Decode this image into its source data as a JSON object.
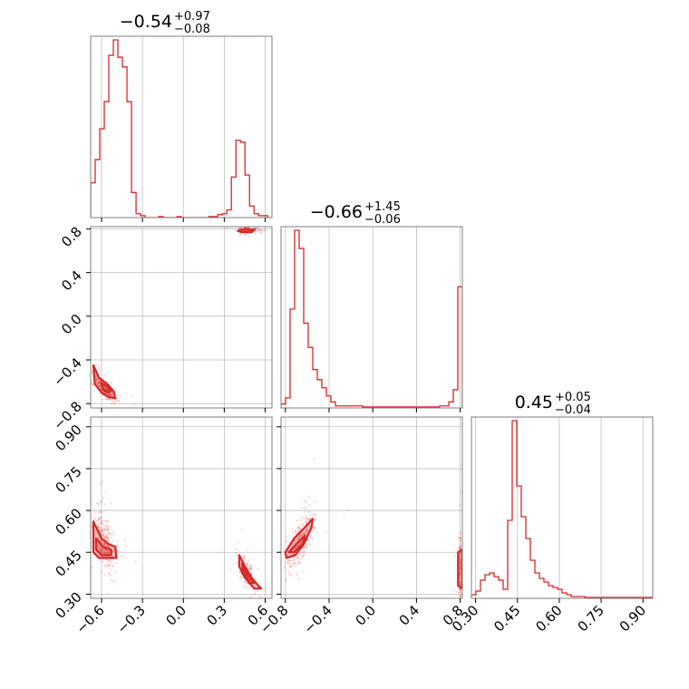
{
  "chart_data": {
    "type": "corner",
    "color": "#d62728",
    "params": [
      {
        "title_main": "−0.54",
        "title_plus": "+0.97",
        "title_minus": "−0.08",
        "range": [
          -0.68,
          0.65
        ],
        "ticks": [
          -0.6,
          -0.3,
          0.0,
          0.3,
          0.6
        ],
        "tick_labels": [
          "−0.6",
          "−0.3",
          "0.0",
          "0.3",
          "0.6"
        ],
        "hist_edges_start": -0.68,
        "hist_bin_width": 0.0333,
        "hist_counts": [
          0.18,
          0.3,
          0.46,
          0.6,
          0.84,
          0.92,
          0.83,
          0.78,
          0.6,
          0.13,
          0.02,
          0.01,
          0.0,
          0.0,
          0.0,
          0.005,
          0.0,
          0.0,
          0.0,
          0.005,
          0.0,
          0.0,
          0.0,
          0.0,
          0.0,
          0.0,
          0.005,
          0.005,
          0.015,
          0.02,
          0.04,
          0.21,
          0.4,
          0.39,
          0.22,
          0.06,
          0.02,
          0.01,
          0.01,
          0.0
        ]
      },
      {
        "title_main": "−0.66",
        "title_plus": "+1.45",
        "title_minus": "−0.06",
        "range": [
          -0.84,
          0.82
        ],
        "ticks": [
          -0.8,
          -0.4,
          0.0,
          0.4,
          0.8
        ],
        "tick_labels": [
          "−0.8",
          "−0.4",
          "0.0",
          "0.4",
          "0.8"
        ],
        "hist_edges_start": -0.84,
        "hist_bin_width": 0.0415,
        "hist_counts": [
          0.02,
          0.05,
          0.49,
          0.88,
          0.79,
          0.42,
          0.3,
          0.19,
          0.14,
          0.1,
          0.06,
          0.03,
          0.01,
          0.01,
          0.01,
          0.01,
          0.01,
          0.01,
          0.005,
          0.005,
          0.005,
          0.005,
          0.005,
          0.005,
          0.005,
          0.005,
          0.005,
          0.005,
          0.005,
          0.005,
          0.005,
          0.005,
          0.005,
          0.005,
          0.005,
          0.01,
          0.01,
          0.03,
          0.09,
          0.6
        ]
      },
      {
        "title_main": "0.45",
        "title_plus": "+0.05",
        "title_minus": "−0.04",
        "range": [
          0.285,
          0.935
        ],
        "ticks": [
          0.3,
          0.45,
          0.6,
          0.75,
          0.9
        ],
        "tick_labels": [
          "0.30",
          "0.45",
          "0.60",
          "0.75",
          "0.90"
        ],
        "hist_edges_start": 0.285,
        "hist_bin_width": 0.01625,
        "hist_counts": [
          0.02,
          0.04,
          0.1,
          0.13,
          0.14,
          0.12,
          0.1,
          0.05,
          0.43,
          0.98,
          0.62,
          0.45,
          0.33,
          0.21,
          0.14,
          0.11,
          0.09,
          0.07,
          0.06,
          0.05,
          0.03,
          0.02,
          0.01,
          0.01,
          0.01,
          0.005,
          0.005,
          0.005,
          0.005,
          0.005,
          0.005,
          0.005,
          0.005,
          0.005,
          0.005,
          0.005,
          0.005,
          0.005,
          0.005,
          0.005
        ]
      }
    ],
    "pairs": [
      {
        "x_param": 0,
        "y_param": 1,
        "clusters": [
          {
            "cx": -0.58,
            "cy": -0.66,
            "sx": 0.04,
            "sy": 0.06,
            "n": 320,
            "rho": -0.85
          },
          {
            "cx": 0.47,
            "cy": 0.79,
            "sx": 0.04,
            "sy": 0.015,
            "n": 160,
            "rho": 0.0
          }
        ],
        "contours": [
          {
            "level": "outer",
            "points": [
              [
                -0.66,
                -0.45
              ],
              [
                -0.62,
                -0.56
              ],
              [
                -0.55,
                -0.63
              ],
              [
                -0.51,
                -0.69
              ],
              [
                -0.5,
                -0.75
              ],
              [
                -0.55,
                -0.74
              ],
              [
                -0.6,
                -0.7
              ],
              [
                -0.65,
                -0.62
              ]
            ]
          },
          {
            "level": "inner",
            "points": [
              [
                -0.6,
                -0.61
              ],
              [
                -0.56,
                -0.64
              ],
              [
                -0.53,
                -0.68
              ],
              [
                -0.55,
                -0.7
              ],
              [
                -0.59,
                -0.67
              ]
            ]
          },
          {
            "level": "outer",
            "points": [
              [
                0.4,
                0.78
              ],
              [
                0.45,
                0.8
              ],
              [
                0.52,
                0.79
              ],
              [
                0.5,
                0.77
              ],
              [
                0.43,
                0.77
              ]
            ]
          }
        ]
      },
      {
        "x_param": 0,
        "y_param": 2,
        "clusters": [
          {
            "cx": -0.58,
            "cy": 0.49,
            "sx": 0.04,
            "sy": 0.05,
            "n": 320,
            "rho": -0.5
          },
          {
            "cx": 0.47,
            "cy": 0.37,
            "sx": 0.035,
            "sy": 0.035,
            "n": 170,
            "rho": -0.7
          }
        ],
        "contours": [
          {
            "level": "outer",
            "points": [
              [
                -0.66,
                0.56
              ],
              [
                -0.6,
                0.5
              ],
              [
                -0.55,
                0.48
              ],
              [
                -0.5,
                0.47
              ],
              [
                -0.49,
                0.43
              ],
              [
                -0.56,
                0.43
              ],
              [
                -0.62,
                0.43
              ],
              [
                -0.66,
                0.45
              ]
            ]
          },
          {
            "level": "inner",
            "points": [
              [
                -0.64,
                0.5
              ],
              [
                -0.59,
                0.47
              ],
              [
                -0.53,
                0.46
              ],
              [
                -0.53,
                0.44
              ],
              [
                -0.6,
                0.44
              ],
              [
                -0.64,
                0.46
              ]
            ]
          },
          {
            "level": "outer",
            "points": [
              [
                0.41,
                0.44
              ],
              [
                0.45,
                0.4
              ],
              [
                0.5,
                0.36
              ],
              [
                0.55,
                0.33
              ],
              [
                0.57,
                0.32
              ],
              [
                0.52,
                0.32
              ],
              [
                0.45,
                0.36
              ],
              [
                0.41,
                0.4
              ]
            ]
          },
          {
            "level": "inner",
            "points": [
              [
                0.43,
                0.41
              ],
              [
                0.47,
                0.37
              ],
              [
                0.52,
                0.34
              ],
              [
                0.49,
                0.34
              ],
              [
                0.44,
                0.38
              ]
            ]
          }
        ]
      },
      {
        "x_param": 1,
        "y_param": 2,
        "clusters": [
          {
            "cx": -0.66,
            "cy": 0.49,
            "sx": 0.06,
            "sy": 0.05,
            "n": 320,
            "rho": 0.75
          },
          {
            "cx": 0.8,
            "cy": 0.4,
            "sx": 0.01,
            "sy": 0.06,
            "n": 160,
            "rho": 0.0
          }
        ],
        "contours": [
          {
            "level": "outer",
            "points": [
              [
                -0.8,
                0.45
              ],
              [
                -0.72,
                0.5
              ],
              [
                -0.62,
                0.54
              ],
              [
                -0.55,
                0.57
              ],
              [
                -0.56,
                0.54
              ],
              [
                -0.63,
                0.48
              ],
              [
                -0.71,
                0.44
              ],
              [
                -0.79,
                0.43
              ]
            ]
          },
          {
            "level": "inner",
            "points": [
              [
                -0.77,
                0.45
              ],
              [
                -0.7,
                0.48
              ],
              [
                -0.62,
                0.51
              ],
              [
                -0.64,
                0.48
              ],
              [
                -0.72,
                0.45
              ]
            ]
          },
          {
            "level": "outer",
            "points": [
              [
                0.78,
                0.33
              ],
              [
                0.78,
                0.45
              ],
              [
                0.82,
                0.46
              ],
              [
                0.82,
                0.32
              ]
            ]
          }
        ]
      }
    ]
  }
}
